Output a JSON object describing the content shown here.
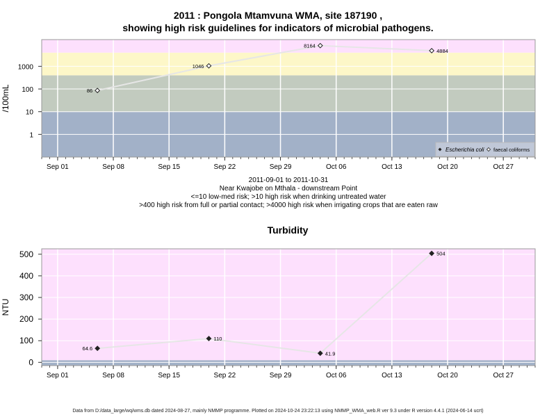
{
  "header": {
    "title_line1": "2011 : Pongola Mtamvuna WMA, site 187190 ,",
    "title_line2": "showing high risk guidelines for indicators of microbial pathogens."
  },
  "subtitle": {
    "line1": "2011-09-01 to 2011-10-31",
    "line2": "Near Kwajobe on Mthala - downstream Point",
    "line3": "<=10 low-med risk; >10 high risk when drinking untreated water",
    "line4": ">400 high risk from full or partial contact; >4000 high risk when irrigating crops that are eaten raw"
  },
  "footer": {
    "text": "Data from D:/data_large/wq/wms.db dated 2024-08-27, mainly NMMP programme. Plotted on 2024-10-24 23:22:13 using NMMP_WMA_web.R ver 9.3 under R version 4.4.1 (2024-06-14 ucrt)"
  },
  "colors": {
    "band_low": "#a2b1c8",
    "band_med": "#c2cbbf",
    "band_high": "#fdf7c8",
    "band_top": "#fde0fd",
    "turb_bg": "#fde0fd",
    "grid": "#ffffff",
    "line": "#e6e6e6"
  },
  "chart_data": [
    {
      "type": "scatter",
      "title": "",
      "ylabel": "/100mL",
      "y_scale": "log",
      "yticks": [
        "1",
        "10",
        "100",
        "1000"
      ],
      "xticks": [
        "Sep 01",
        "Sep 08",
        "Sep 15",
        "Sep 22",
        "Sep 29",
        "Oct 06",
        "Oct 13",
        "Oct 20",
        "Oct 27"
      ],
      "xlim": [
        "2011-08-30",
        "2011-10-31"
      ],
      "ylim": [
        0.1,
        15000
      ],
      "risk_bands": [
        {
          "from": 0.1,
          "to": 10,
          "color": "#a2b1c8"
        },
        {
          "from": 10,
          "to": 400,
          "color": "#c2cbbf"
        },
        {
          "from": 400,
          "to": 4000,
          "color": "#fdf7c8"
        },
        {
          "from": 4000,
          "to": 15000,
          "color": "#fde0fd"
        }
      ],
      "legend": {
        "position": "bottom-right",
        "entries": [
          "Escherichia coli",
          "faecal coliforms"
        ]
      },
      "series": [
        {
          "name": "faecal coliforms",
          "marker": "open-diamond",
          "points": [
            {
              "x": "2011-09-06",
              "y": 86,
              "label": "86"
            },
            {
              "x": "2011-09-20",
              "y": 1046,
              "label": "1046"
            },
            {
              "x": "2011-10-04",
              "y": 8164,
              "label": "8164"
            },
            {
              "x": "2011-10-18",
              "y": 4884,
              "label": "4884"
            }
          ]
        }
      ]
    },
    {
      "type": "line",
      "title": "Turbidity",
      "ylabel": "NTU",
      "yticks": [
        "0",
        "100",
        "200",
        "300",
        "400",
        "500"
      ],
      "xticks": [
        "Sep 01",
        "Sep 08",
        "Sep 15",
        "Sep 22",
        "Sep 29",
        "Oct 06",
        "Oct 13",
        "Oct 20",
        "Oct 27"
      ],
      "xlim": [
        "2011-08-30",
        "2011-10-31"
      ],
      "ylim": [
        -15,
        525
      ],
      "bands": [
        {
          "from": -15,
          "to": 10,
          "color": "#a2b1c8"
        },
        {
          "from": 10,
          "to": 525,
          "color": "#fde0fd"
        }
      ],
      "series": [
        {
          "name": "",
          "marker": "filled-diamond",
          "points": [
            {
              "x": "2011-09-06",
              "y": 64.6,
              "label": "64.6"
            },
            {
              "x": "2011-09-20",
              "y": 110,
              "label": "110"
            },
            {
              "x": "2011-10-04",
              "y": 41.9,
              "label": "41.9"
            },
            {
              "x": "2011-10-18",
              "y": 504,
              "label": "504"
            }
          ]
        }
      ]
    }
  ]
}
